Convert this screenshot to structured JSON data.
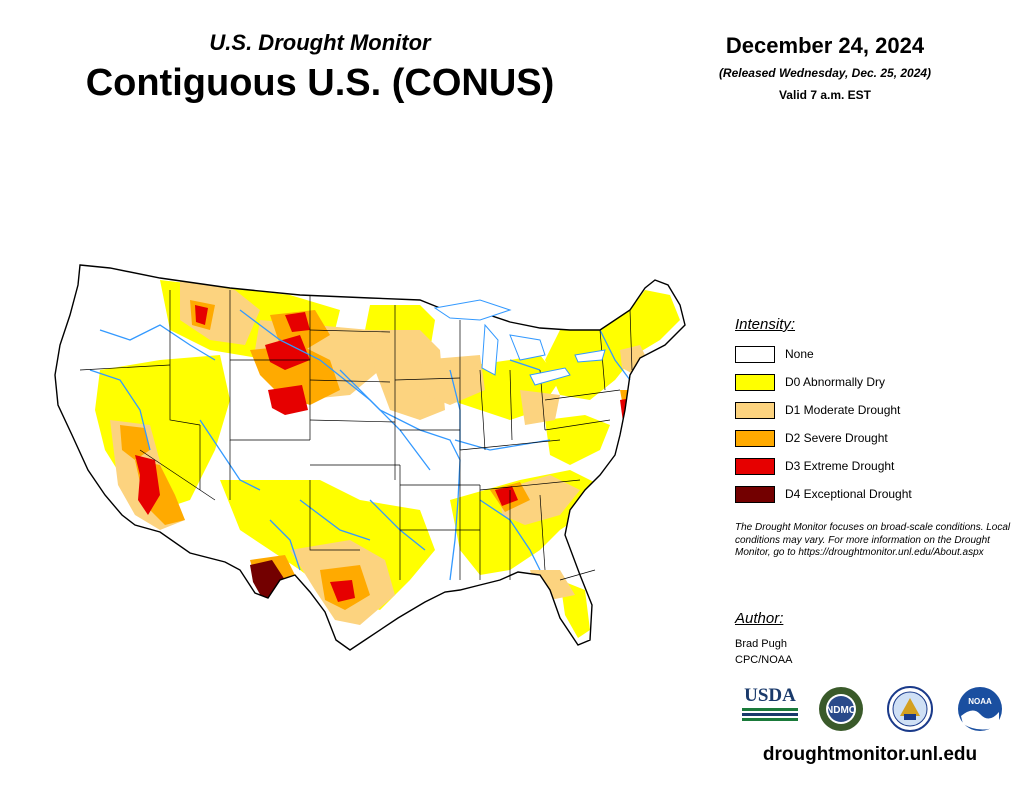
{
  "header": {
    "subtitle": "U.S. Drought Monitor",
    "title": "Contiguous U.S. (CONUS)",
    "date": "December 24, 2024",
    "released": "(Released Wednesday, Dec. 25, 2024)",
    "valid": "Valid 7 a.m. EST"
  },
  "legend": {
    "title": "Intensity:",
    "items": [
      {
        "label": "None",
        "color": "#ffffff"
      },
      {
        "label": "D0 Abnormally Dry",
        "color": "#ffff00"
      },
      {
        "label": "D1 Moderate Drought",
        "color": "#fcd37f"
      },
      {
        "label": "D2 Severe Drought",
        "color": "#ffaa00"
      },
      {
        "label": "D3 Extreme Drought",
        "color": "#e60000"
      },
      {
        "label": "D4 Exceptional Drought",
        "color": "#730000"
      }
    ]
  },
  "note": "The Drought Monitor focuses on broad-scale conditions. Local conditions may vary. For more information on the Drought Monitor, go to https://droughtmonitor.unl.edu/About.aspx",
  "author": {
    "title": "Author:",
    "name": "Brad Pugh",
    "org": "CPC/NOAA"
  },
  "logos": {
    "usda": "USDA",
    "ndmc": "NDMC",
    "noaa": "NOAA"
  },
  "website": "droughtmonitor.unl.edu",
  "colors": {
    "river": "#3399ff",
    "border": "#000000"
  }
}
